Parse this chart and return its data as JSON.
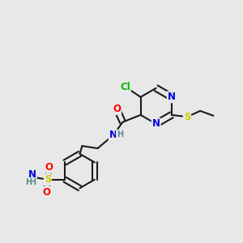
{
  "bg_color": "#e8e8e8",
  "bond_color": "#1a1a1a",
  "atom_colors": {
    "N": "#0000dd",
    "O": "#ff0000",
    "S": "#cccc00",
    "Cl": "#00bb00",
    "C": "#1a1a1a",
    "H": "#5a8a8a"
  },
  "font_size": 8.5,
  "lw": 1.5
}
